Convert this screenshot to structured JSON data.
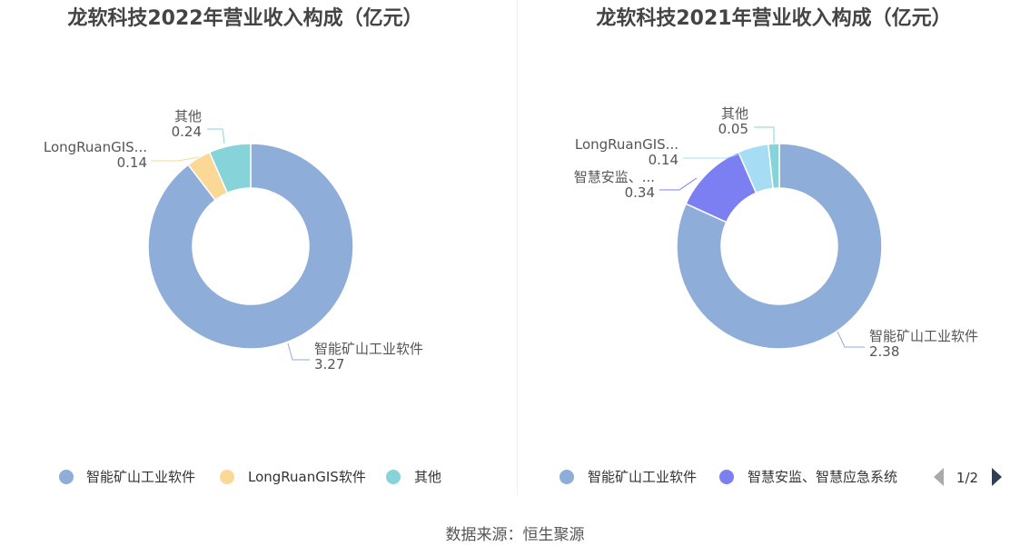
{
  "chart_data": [
    {
      "type": "pie",
      "title": "龙软科技2022年营业收入构成（亿元）",
      "categories": [
        "智能矿山工业软件",
        "LongRuanGIS软件",
        "其他"
      ],
      "label_names": [
        "智能矿山工业软件",
        "LongRuanGIS...",
        "其他"
      ],
      "values": [
        3.27,
        0.14,
        0.24
      ],
      "value_labels": [
        "3.27",
        "0.14",
        "0.24"
      ],
      "colors": [
        "#8eadd9",
        "#fbd896",
        "#86d4da"
      ],
      "legend": {
        "placement": "bottom",
        "items": [
          "智能矿山工业软件",
          "LongRuanGIS软件",
          "其他"
        ]
      }
    },
    {
      "type": "pie",
      "title": "龙软科技2021年营业收入构成（亿元）",
      "categories": [
        "智能矿山工业软件",
        "智慧安监、智慧应急系统",
        "LongRuanGIS软件",
        "其他"
      ],
      "label_names": [
        "智能矿山工业软件",
        "智慧安监、...",
        "LongRuanGIS...",
        "其他"
      ],
      "values": [
        2.38,
        0.34,
        0.14,
        0.05
      ],
      "value_labels": [
        "2.38",
        "0.34",
        "0.14",
        "0.05"
      ],
      "colors": [
        "#8eadd9",
        "#7b7ff2",
        "#a7dcf5",
        "#86d4da"
      ],
      "legend": {
        "placement": "bottom",
        "items": [
          "智能矿山工业软件",
          "智慧安监、智慧应急系统"
        ],
        "pager": "1/2"
      }
    }
  ],
  "source": "数据来源：恒生聚源"
}
